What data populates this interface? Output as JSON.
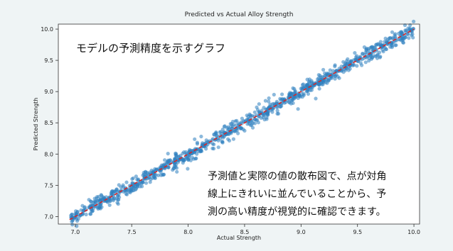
{
  "chart_data": {
    "type": "scatter",
    "title": "Predicted vs Actual Alloy Strength",
    "xlabel": "Actual Strength",
    "ylabel": "Predicted Strength",
    "xlim": [
      6.85,
      10.05
    ],
    "ylim": [
      6.88,
      10.08
    ],
    "xticks": [
      "7.0",
      "7.5",
      "8.0",
      "8.5",
      "9.0",
      "9.5",
      "10.0"
    ],
    "yticks": [
      "7.0",
      "7.5",
      "8.0",
      "8.5",
      "9.0",
      "9.5",
      "10.0"
    ],
    "x_range": [
      6.95,
      10.0
    ],
    "n_points_approx": 1000,
    "noise_sd": 0.06,
    "reference_line": {
      "x": [
        6.95,
        10.0
      ],
      "y": [
        6.95,
        10.0
      ]
    },
    "colors": {
      "points": "#2e7fc0",
      "reference_line": "#d62728"
    },
    "grid": false,
    "legend": "none"
  },
  "annotations": {
    "top": "モデルの予測精度を示すグラフ",
    "bottom": [
      "予測値と実際の値の散布図で、点が対角",
      "線上にきれいに並んでいることから、予",
      "測の高い精度が視覚的に確認できます。"
    ]
  }
}
